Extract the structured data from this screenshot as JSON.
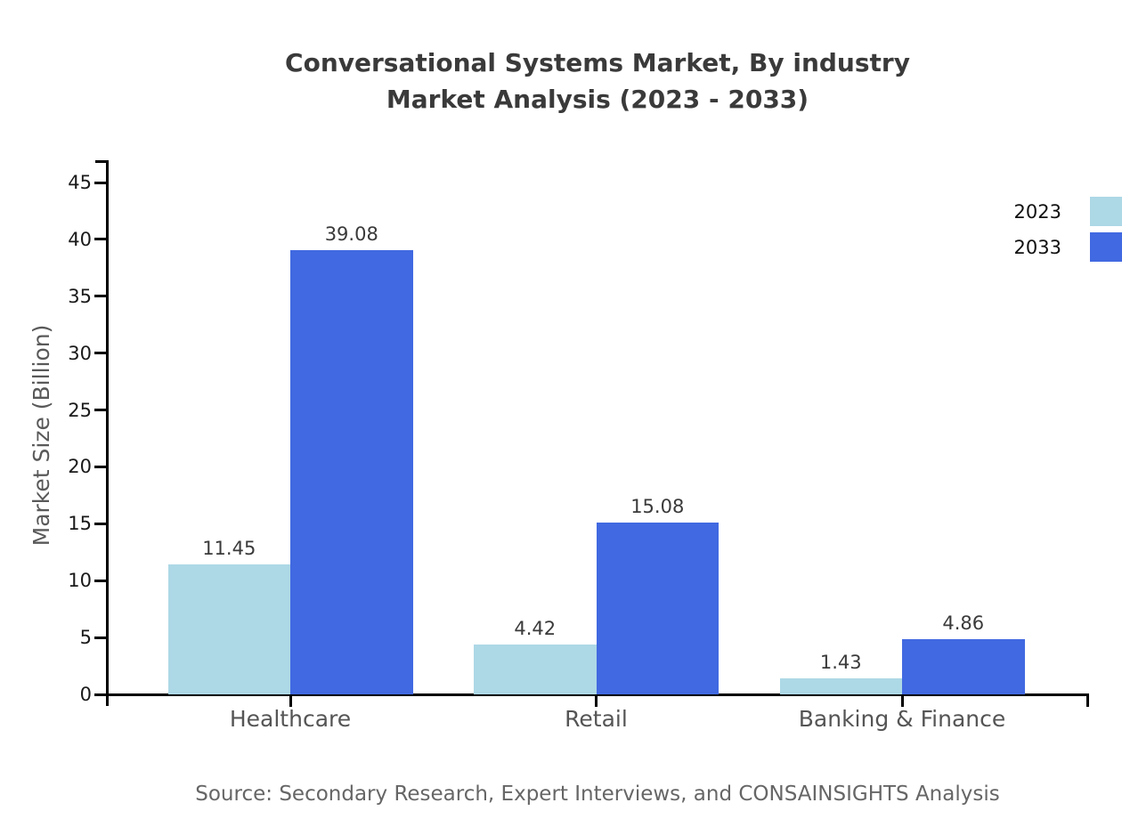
{
  "header": {
    "title_line1": "Conversational Systems Market, By industry",
    "title_line2": "Market Analysis (2023 - 2033)"
  },
  "chart_data": {
    "type": "bar",
    "title": "Conversational Systems Market, By industry Market Analysis (2023 - 2033)",
    "categories": [
      "Healthcare",
      "Retail",
      "Banking & Finance"
    ],
    "series": [
      {
        "name": "2023",
        "color": "#ADD8E6",
        "values": [
          11.45,
          4.42,
          1.43
        ]
      },
      {
        "name": "2033",
        "color": "#4169E1",
        "values": [
          39.08,
          15.08,
          4.86
        ]
      }
    ],
    "value_labels": [
      "11.45",
      "4.42",
      "1.43",
      "39.08",
      "15.08",
      "4.86"
    ],
    "xlabel": "",
    "ylabel": "Market Size (Billion)",
    "ylim": [
      0,
      45
    ],
    "yticks": [
      0,
      5,
      10,
      15,
      20,
      25,
      30,
      35,
      40,
      45
    ],
    "grid": false,
    "legend_position": "top-right",
    "bar_value_labels_shown": true
  },
  "legend": {
    "items": [
      {
        "label": "2023",
        "color": "#ADD8E6"
      },
      {
        "label": "2033",
        "color": "#4169E1"
      }
    ]
  },
  "footer": {
    "source": "Source: Secondary Research, Expert Interviews, and CONSAINSIGHTS Analysis"
  },
  "colors": {
    "series_2023": "#ADD8E6",
    "series_2033": "#4169E1",
    "axis": "#000000",
    "title_text": "#3A3A3A",
    "tick_label_text": "#1A1A1A",
    "category_text": "#555555",
    "axis_label_text": "#595959",
    "source_text": "#666666",
    "background": "#FFFFFF"
  }
}
